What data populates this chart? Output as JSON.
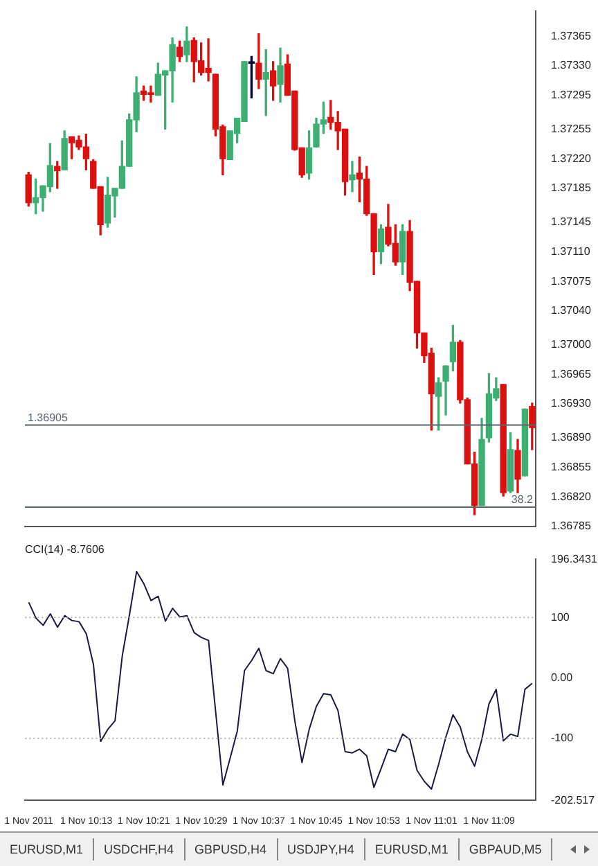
{
  "chart_data": [
    {
      "type": "candlestick",
      "tick_labels": "y",
      "categories": [
        null,
        null,
        null,
        null,
        null,
        null,
        null,
        null,
        null,
        null,
        null,
        null,
        null,
        null,
        null,
        null,
        null,
        null,
        null,
        null,
        null,
        null,
        null,
        null,
        null,
        null,
        null,
        null,
        null,
        null,
        null,
        null,
        null,
        null,
        null,
        null,
        null,
        null,
        null,
        null,
        null,
        null,
        null,
        null,
        null,
        null,
        null,
        null,
        null,
        null,
        null,
        null,
        null,
        null,
        null,
        null,
        null,
        null,
        null,
        null,
        null,
        null,
        null,
        null,
        null,
        null,
        null,
        null,
        null,
        null,
        null
      ],
      "ohlc": [
        [
          1.37201,
          1.37204,
          1.37164,
          1.37168
        ],
        [
          1.37168,
          1.37196,
          1.37155,
          1.37174
        ],
        [
          1.37174,
          1.37188,
          1.37158,
          1.37188
        ],
        [
          1.37187,
          1.37238,
          1.37181,
          1.37212
        ],
        [
          1.37211,
          1.37217,
          1.37185,
          1.37206
        ],
        [
          1.37207,
          1.37253,
          1.37207,
          1.37244
        ],
        [
          1.37246,
          1.37246,
          1.3722,
          1.37239
        ],
        [
          1.37242,
          1.37247,
          1.37231,
          1.37234
        ],
        [
          1.37234,
          1.37249,
          1.37207,
          1.3722
        ],
        [
          1.37217,
          1.37219,
          1.37185,
          1.37185
        ],
        [
          1.37187,
          1.37187,
          1.3713,
          1.37142
        ],
        [
          1.37144,
          1.37198,
          1.37139,
          1.37177
        ],
        [
          1.37176,
          1.37185,
          1.37151,
          1.37185
        ],
        [
          1.37185,
          1.37241,
          1.37185,
          1.37211
        ],
        [
          1.37211,
          1.37273,
          1.37211,
          1.37266
        ],
        [
          1.37266,
          1.37317,
          1.37252,
          1.37298
        ],
        [
          1.373,
          1.37306,
          1.37289,
          1.37296
        ],
        [
          1.37298,
          1.37306,
          1.37287,
          1.37296
        ],
        [
          1.37295,
          1.37333,
          1.37295,
          1.3732
        ],
        [
          1.37319,
          1.37324,
          1.37255,
          1.37324
        ],
        [
          1.37324,
          1.37363,
          1.37287,
          1.37355
        ],
        [
          1.37352,
          1.37359,
          1.37335,
          1.37341
        ],
        [
          1.37343,
          1.37376,
          1.37335,
          1.37359
        ],
        [
          1.3736,
          1.37363,
          1.37311,
          1.37335
        ],
        [
          1.37336,
          1.37357,
          1.37319,
          1.37322
        ],
        [
          1.37327,
          1.37362,
          1.37312,
          1.37322
        ],
        [
          1.3732,
          1.3732,
          1.37247,
          1.37255
        ],
        [
          1.37258,
          1.3726,
          1.37201,
          1.3722
        ],
        [
          1.37219,
          1.37253,
          1.37219,
          1.37253
        ],
        [
          1.3725,
          1.37268,
          1.37239,
          1.37268
        ],
        [
          1.37264,
          1.37335,
          1.37264,
          1.37335
        ],
        [
          1.37333,
          1.37341,
          1.37292,
          1.37333
        ],
        [
          1.37333,
          1.37368,
          1.37303,
          1.37314
        ],
        [
          1.37314,
          1.37349,
          1.37271,
          1.37322
        ],
        [
          1.37324,
          1.37335,
          1.37289,
          1.37306
        ],
        [
          1.37308,
          1.37351,
          1.37287,
          1.3733
        ],
        [
          1.37332,
          1.37343,
          1.37295,
          1.37295
        ],
        [
          1.373,
          1.373,
          1.3723,
          1.37231
        ],
        [
          1.37233,
          1.37233,
          1.37198,
          1.37201
        ],
        [
          1.37203,
          1.37253,
          1.37196,
          1.37233
        ],
        [
          1.37234,
          1.37268,
          1.37234,
          1.37261
        ],
        [
          1.37261,
          1.37287,
          1.3725,
          1.37266
        ],
        [
          1.37269,
          1.37289,
          1.37255,
          1.37263
        ],
        [
          1.37263,
          1.37276,
          1.37231,
          1.37253
        ],
        [
          1.37255,
          1.37255,
          1.37177,
          1.37193
        ],
        [
          1.37195,
          1.37217,
          1.37181,
          1.37201
        ],
        [
          1.37203,
          1.37222,
          1.37169,
          1.37196
        ],
        [
          1.37196,
          1.37211,
          1.37153,
          1.37155
        ],
        [
          1.37155,
          1.37155,
          1.37083,
          1.3711
        ],
        [
          1.3711,
          1.37142,
          1.37096,
          1.37137
        ],
        [
          1.37139,
          1.37166,
          1.37117,
          1.37119
        ],
        [
          1.3712,
          1.37142,
          1.37094,
          1.37098
        ],
        [
          1.37098,
          1.37142,
          1.37083,
          1.37134
        ],
        [
          1.37134,
          1.37147,
          1.37064,
          1.37074
        ],
        [
          1.37075,
          1.37075,
          1.36996,
          1.37014
        ],
        [
          1.37014,
          1.37014,
          1.36979,
          1.36987
        ],
        [
          1.3699,
          1.36996,
          1.36899,
          1.36942
        ],
        [
          1.36939,
          1.36961,
          1.36899,
          1.36955
        ],
        [
          1.36957,
          1.36975,
          1.36917,
          1.36975
        ],
        [
          1.3698,
          1.37023,
          1.36969,
          1.37003
        ],
        [
          1.37003,
          1.37005,
          1.36931,
          1.36935
        ],
        [
          1.36935,
          1.36937,
          1.36859,
          1.36859
        ],
        [
          1.36859,
          1.36873,
          1.36799,
          1.3681
        ],
        [
          1.3681,
          1.36913,
          1.3681,
          1.36888
        ],
        [
          1.3689,
          1.36966,
          1.36885,
          1.36942
        ],
        [
          1.36937,
          1.36961,
          1.36934,
          1.36948
        ],
        [
          1.36953,
          1.36953,
          1.36821,
          1.36825
        ],
        [
          1.36827,
          1.36896,
          1.36825,
          1.36876
        ],
        [
          1.36875,
          1.36888,
          1.36825,
          1.36841
        ],
        [
          1.36845,
          1.36924,
          1.36845,
          1.36924
        ],
        [
          1.36927,
          1.36931,
          1.36876,
          1.36902
        ]
      ],
      "colors": [
        "#dd1010",
        "#3fae72",
        "#3fae72",
        "#3fae72",
        "#dd1010",
        "#3fae72",
        "#dd1010",
        "#dd1010",
        "#dd1010",
        "#dd1010",
        "#dd1010",
        "#3fae72",
        "#3fae72",
        "#3fae72",
        "#3fae72",
        "#3fae72",
        "#dd1010",
        "#dd1010",
        "#3fae72",
        "#3fae72",
        "#3fae72",
        "#dd1010",
        "#3fae72",
        "#dd1010",
        "#dd1010",
        "#dd1010",
        "#dd1010",
        "#dd1010",
        "#3fae72",
        "#3fae72",
        "#3fae72",
        "#000033",
        "#dd1010",
        "#3fae72",
        "#dd1010",
        "#3fae72",
        "#dd1010",
        "#dd1010",
        "#dd1010",
        "#3fae72",
        "#3fae72",
        "#3fae72",
        "#dd1010",
        "#dd1010",
        "#dd1010",
        "#3fae72",
        "#dd1010",
        "#dd1010",
        "#dd1010",
        "#3fae72",
        "#dd1010",
        "#dd1010",
        "#3fae72",
        "#dd1010",
        "#dd1010",
        "#dd1010",
        "#dd1010",
        "#3fae72",
        "#3fae72",
        "#3fae72",
        "#dd1010",
        "#dd1010",
        "#dd1010",
        "#3fae72",
        "#3fae72",
        "#3fae72",
        "#dd1010",
        "#3fae72",
        "#dd1010",
        "#3fae72",
        "#dd1010"
      ],
      "ylim": [
        1.36785,
        1.37395
      ],
      "yticks": [
        1.37365,
        {
          "value": 1.3733,
          "label": "1.37330"
        },
        1.37295,
        1.37255,
        {
          "value": 1.3722,
          "label": "1.37220"
        },
        1.37185,
        1.37145,
        {
          "value": 1.3711,
          "label": "1.37110"
        },
        1.37075,
        {
          "value": 1.3704,
          "label": "1.37040"
        },
        {
          "value": 1.37,
          "label": "1.37000"
        },
        1.36965,
        {
          "value": 1.3693,
          "label": "1.36930"
        },
        {
          "value": 1.3689,
          "label": "1.36890"
        },
        1.36855,
        {
          "value": 1.3682,
          "label": "1.36820"
        },
        1.36785
      ],
      "ref_lines": [
        {
          "axis": "y",
          "value": 1.36905,
          "label": "1.36905",
          "color": "#5a6470"
        },
        {
          "axis": "y",
          "value": 1.36808,
          "color": "#5a6470"
        }
      ],
      "annotations": [
        {
          "text": "38.2",
          "y": 1.36808
        }
      ]
    },
    {
      "type": "line",
      "title": "CCI(14) -8.7606",
      "marker": "none",
      "categories": [
        "1 Nov 2011",
        null,
        null,
        null,
        null,
        null,
        null,
        null,
        "1 Nov 10:13",
        null,
        null,
        null,
        null,
        null,
        null,
        null,
        "1 Nov 10:21",
        null,
        null,
        null,
        null,
        null,
        null,
        null,
        "1 Nov 10:29",
        null,
        null,
        null,
        null,
        null,
        null,
        null,
        "1 Nov 10:37",
        null,
        null,
        null,
        null,
        null,
        null,
        null,
        "1 Nov 10:45",
        null,
        null,
        null,
        null,
        null,
        null,
        null,
        "1 Nov 10:53",
        null,
        null,
        null,
        null,
        null,
        null,
        null,
        "1 Nov 11:01",
        null,
        null,
        null,
        null,
        null,
        null,
        null,
        "1 Nov 11:09",
        null,
        null,
        null,
        null,
        null,
        null
      ],
      "series": [
        {
          "color": "#1a1a40",
          "values": [
            125,
            99,
            87,
            106,
            84,
            103,
            95,
            93,
            73,
            22,
            -105,
            -85,
            -71,
            36,
            104,
            176,
            156,
            128,
            135,
            94,
            115,
            101,
            103,
            75,
            67,
            62,
            -57,
            -177,
            -133,
            -88,
            12,
            29,
            49,
            12,
            7,
            32,
            16,
            -71,
            -140,
            -85,
            -47,
            -26,
            -28,
            -54,
            -122,
            -124,
            -118,
            -129,
            -181,
            -150,
            -118,
            -122,
            -93,
            -102,
            -153,
            -171,
            -184,
            -143,
            -98,
            -61,
            -81,
            -122,
            -146,
            -102,
            -43,
            -19,
            -104,
            -93,
            -97,
            -19,
            -9
          ]
        }
      ],
      "ylim": [
        -202.517,
        196.3431
      ],
      "yticks": [
        196.3431,
        100,
        {
          "value": 0,
          "label": "0.00"
        },
        -100,
        -202.517
      ],
      "ref_lines": [
        {
          "axis": "y",
          "value": 100,
          "color": "#b0b0b0",
          "line_style": "dotted"
        },
        {
          "axis": "y",
          "value": -100,
          "color": "#b0b0b0",
          "line_style": "dotted"
        }
      ],
      "annotations": [
        "EURUSD,M1",
        "USDCHF,H4",
        "GBPUSD,H4",
        "USDJPY,H4",
        "EURUSD,M1",
        "GBPAUD,M5"
      ]
    }
  ]
}
